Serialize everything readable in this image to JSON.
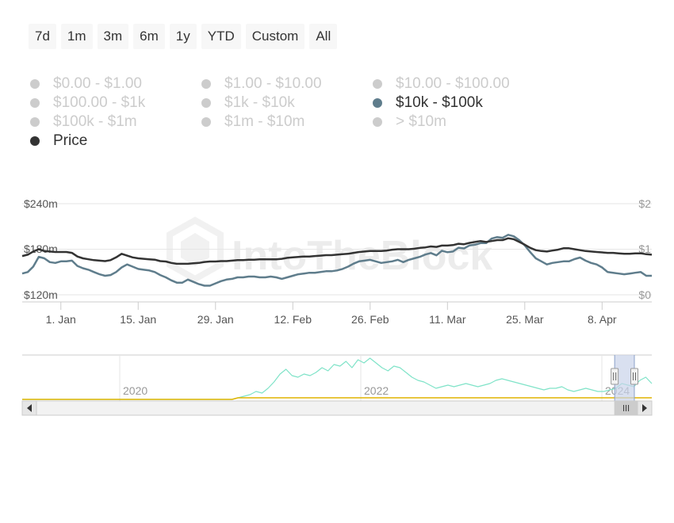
{
  "range_selector": {
    "buttons": [
      "7d",
      "1m",
      "3m",
      "6m",
      "1y",
      "YTD",
      "Custom",
      "All"
    ]
  },
  "legend": {
    "items": [
      {
        "label": "$0.00 - $1.00",
        "active": false
      },
      {
        "label": "$1.00 - $10.00",
        "active": false
      },
      {
        "label": "$10.00 - $100.00",
        "active": false
      },
      {
        "label": "$100.00 - $1k",
        "active": false
      },
      {
        "label": "$1k - $10k",
        "active": false
      },
      {
        "label": "$10k - $100k",
        "active": true
      },
      {
        "label": "$100k - $1m",
        "active": false
      },
      {
        "label": "$1m - $10m",
        "active": false
      },
      {
        "label": "> $10m",
        "active": false
      },
      {
        "label": "Price",
        "active": true
      }
    ]
  },
  "watermark": "IntoTheBlock",
  "colors": {
    "series_volume": "#5f7d8c",
    "series_price": "#333333",
    "navigator_line": "#7fe3c8",
    "navigator_price": "#e0b400",
    "navigator_mask": "#c9d3ea"
  },
  "chart_data": {
    "type": "line",
    "x_tick_labels": [
      "1. Jan",
      "15. Jan",
      "29. Jan",
      "12. Feb",
      "26. Feb",
      "11. Mar",
      "25. Mar",
      "8. Apr"
    ],
    "y_left": {
      "ylim": [
        120,
        240
      ],
      "unit": "m",
      "tick_labels": [
        "$120m",
        "$180m",
        "$240m"
      ]
    },
    "y_right": {
      "ylim": [
        0,
        2
      ],
      "tick_labels": [
        "$0",
        "$1",
        "$2"
      ]
    },
    "series": [
      {
        "name": "$10k - $100k",
        "axis": "left",
        "values": [
          148,
          150,
          157,
          170,
          168,
          163,
          162,
          164,
          164,
          165,
          158,
          155,
          153,
          150,
          147,
          145,
          146,
          150,
          156,
          160,
          157,
          154,
          153,
          152,
          150,
          146,
          143,
          139,
          136,
          136,
          140,
          137,
          134,
          132,
          132,
          135,
          138,
          140,
          141,
          143,
          143,
          144,
          144,
          143,
          143,
          144,
          143,
          141,
          143,
          145,
          147,
          148,
          149,
          149,
          150,
          151,
          151,
          152,
          154,
          157,
          161,
          164,
          165,
          166,
          164,
          162,
          163,
          164,
          166,
          163,
          166,
          168,
          170,
          173,
          175,
          172,
          178,
          176,
          177,
          182,
          181,
          185,
          186,
          188,
          188,
          194,
          196,
          195,
          199,
          197,
          192,
          185,
          176,
          168,
          164,
          160,
          162,
          163,
          164,
          164,
          167,
          169,
          165,
          162,
          160,
          156,
          150,
          149,
          148,
          147,
          148,
          149,
          150,
          145,
          145
        ]
      },
      {
        "name": "Price",
        "axis": "right",
        "values": [
          0.85,
          0.88,
          0.95,
          1.0,
          0.96,
          0.95,
          0.94,
          0.94,
          0.94,
          0.92,
          0.84,
          0.8,
          0.78,
          0.76,
          0.75,
          0.74,
          0.76,
          0.82,
          0.9,
          0.86,
          0.82,
          0.8,
          0.79,
          0.78,
          0.77,
          0.74,
          0.73,
          0.7,
          0.68,
          0.68,
          0.68,
          0.69,
          0.7,
          0.72,
          0.73,
          0.73,
          0.74,
          0.74,
          0.75,
          0.76,
          0.76,
          0.77,
          0.77,
          0.78,
          0.78,
          0.78,
          0.78,
          0.79,
          0.81,
          0.82,
          0.83,
          0.84,
          0.84,
          0.85,
          0.86,
          0.87,
          0.87,
          0.88,
          0.89,
          0.9,
          0.92,
          0.94,
          0.95,
          0.96,
          0.96,
          0.96,
          0.97,
          0.99,
          1.0,
          1.0,
          1.0,
          1.01,
          1.03,
          1.04,
          1.06,
          1.05,
          1.08,
          1.08,
          1.09,
          1.12,
          1.11,
          1.14,
          1.16,
          1.18,
          1.16,
          1.18,
          1.2,
          1.2,
          1.24,
          1.22,
          1.16,
          1.1,
          1.03,
          0.98,
          0.96,
          0.95,
          0.97,
          0.99,
          1.02,
          1.02,
          1.0,
          0.98,
          0.96,
          0.95,
          0.94,
          0.93,
          0.92,
          0.92,
          0.91,
          0.9,
          0.9,
          0.91,
          0.91,
          0.89,
          0.88
        ]
      }
    ],
    "navigator": {
      "x_tick_labels": [
        "2020",
        "2022",
        "2024"
      ],
      "series": [
        {
          "name": "$10k - $100k",
          "values": [
            0,
            0,
            0,
            0,
            0,
            0,
            0,
            0,
            0,
            0,
            0,
            0,
            0,
            0,
            0,
            0,
            0,
            0,
            0,
            0,
            0,
            0,
            0,
            0,
            0,
            0,
            0,
            0,
            0,
            0,
            0,
            0,
            0,
            0,
            0,
            0,
            2,
            4,
            6,
            10,
            8,
            14,
            22,
            32,
            38,
            30,
            28,
            32,
            30,
            34,
            40,
            36,
            44,
            42,
            48,
            40,
            50,
            46,
            52,
            46,
            40,
            36,
            42,
            40,
            34,
            28,
            24,
            22,
            18,
            14,
            16,
            18,
            16,
            18,
            20,
            18,
            16,
            18,
            20,
            24,
            26,
            24,
            22,
            20,
            18,
            16,
            14,
            12,
            14,
            14,
            16,
            12,
            10,
            12,
            14,
            12,
            10,
            10,
            12,
            14,
            20,
            18,
            16,
            24,
            28,
            20
          ]
        },
        {
          "name": "Price",
          "values": [
            0,
            0,
            0,
            0,
            0,
            0,
            0,
            0,
            0,
            0,
            0,
            0,
            0,
            0,
            0,
            0,
            0,
            0,
            0,
            0,
            0,
            0,
            0,
            0,
            0,
            0,
            0,
            0,
            0,
            0,
            0,
            0,
            0,
            0,
            0,
            0,
            1,
            1,
            1,
            1,
            1,
            1,
            1,
            1,
            1,
            1,
            1,
            1,
            1,
            1,
            1,
            1,
            1,
            1,
            1,
            1,
            1,
            1,
            1,
            1,
            1,
            1,
            1,
            1,
            1,
            1,
            1,
            1,
            1,
            1,
            1,
            1,
            1,
            1,
            1,
            1,
            1,
            1,
            1,
            1,
            1,
            1,
            1,
            1,
            1,
            1,
            1,
            1,
            1,
            1,
            1,
            1,
            1,
            1,
            1,
            1,
            1,
            1,
            1,
            1,
            1,
            1,
            1,
            1,
            1,
            1
          ]
        }
      ],
      "selected_window": [
        0.941,
        1.0
      ]
    }
  }
}
